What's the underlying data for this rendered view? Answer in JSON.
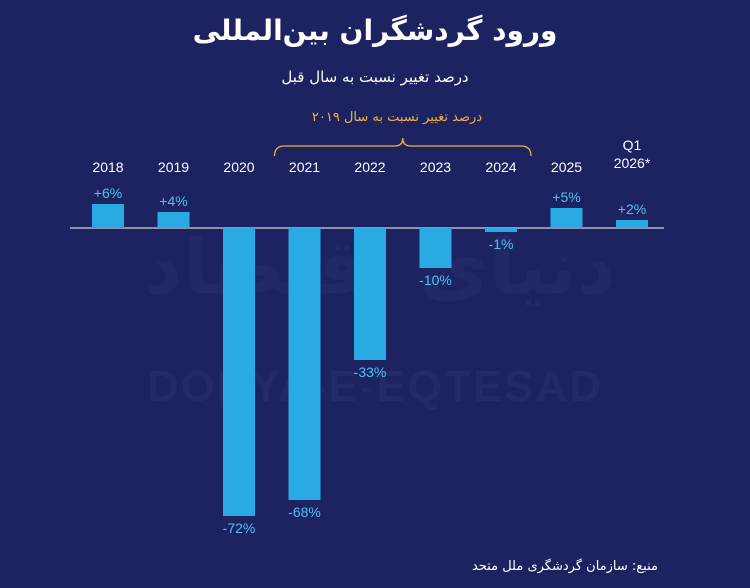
{
  "title": "ورود گردشگران بین‌المللی",
  "subtitle": "درصد تغییر نسبت به سال قبل",
  "annotation": "درصد تغییر نسبت به سال ۲۰۱۹",
  "source": "منبع: سازمان گردشگری ملل متحد",
  "watermark": {
    "latin": "DONYA-E-EQTESAD",
    "persian": "دنیای اقتصاد"
  },
  "colors": {
    "background": "#1d2260",
    "bar": "#29aae2",
    "value_label": "#4ec3f2",
    "annotation": "#f4b23c"
  },
  "chart_data": {
    "type": "bar",
    "categories": [
      "2018",
      "2019",
      "2020",
      "2021",
      "2022",
      "2023",
      "2024",
      "2025",
      "Q1 2026*"
    ],
    "category_labels": [
      [
        "2018"
      ],
      [
        "2019"
      ],
      [
        "2020"
      ],
      [
        "2021"
      ],
      [
        "2022"
      ],
      [
        "2023"
      ],
      [
        "2024"
      ],
      [
        "2025"
      ],
      [
        "Q1",
        "2026*"
      ]
    ],
    "values": [
      6,
      4,
      -72,
      -68,
      -33,
      -10,
      -1,
      5,
      2
    ],
    "value_labels": [
      "+6%",
      "+4%",
      "-72%",
      "-68%",
      "-33%",
      "-10%",
      "-1%",
      "+5%",
      "+2%"
    ],
    "title": "ورود گردشگران بین‌المللی",
    "subtitle": "درصد تغییر نسبت به سال قبل",
    "ylabel": "",
    "xlabel": "",
    "ylim": [
      -72,
      6
    ],
    "grid": false,
    "legend": "none"
  }
}
